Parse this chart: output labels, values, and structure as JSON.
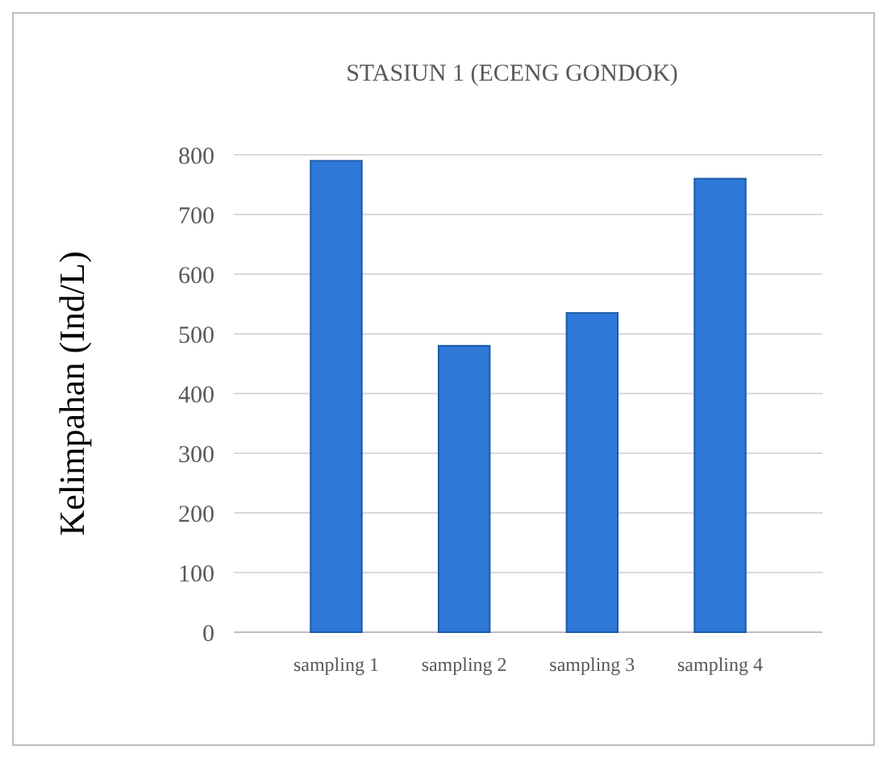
{
  "chart_data": {
    "type": "bar",
    "title": "STASIUN 1 (ECENG GONDOK)",
    "ylabel": "Kelimpahan (Ind/L)",
    "categories": [
      "sampling 1",
      "sampling 2",
      "sampling 3",
      "sampling 4"
    ],
    "values": [
      790,
      480,
      535,
      760
    ],
    "color": "#2e78d8",
    "ylim": [
      0,
      800
    ],
    "yticks": [
      0,
      100,
      200,
      300,
      400,
      500,
      600,
      700,
      800
    ],
    "grid": "y"
  }
}
